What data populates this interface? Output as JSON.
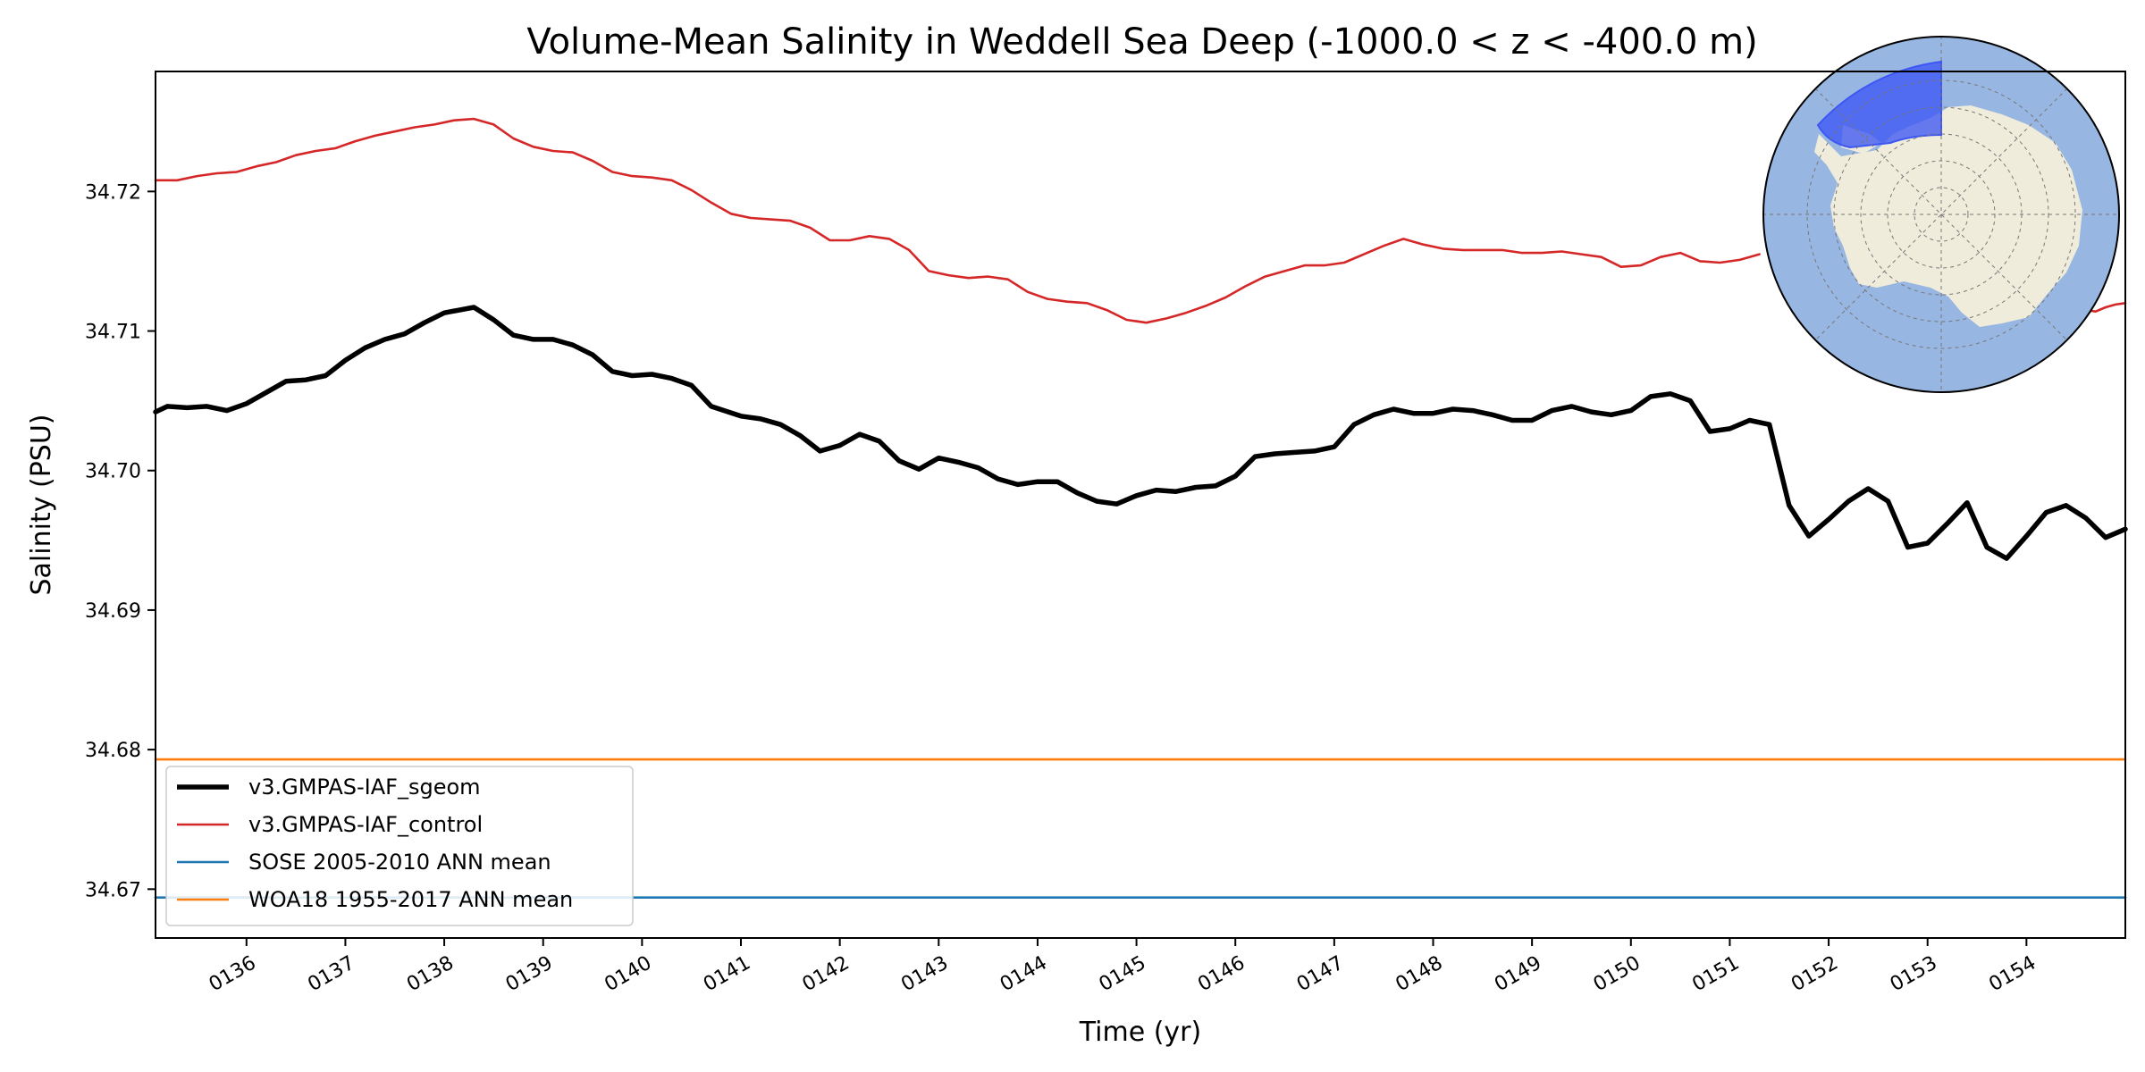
{
  "chart_data": {
    "type": "line",
    "title": "Volume-Mean Salinity in Weddell Sea Deep (-1000.0 < z < -400.0 m)",
    "xlabel": "Time (yr)",
    "ylabel": "Salinity (PSU)",
    "xlim": [
      135.08,
      155.0
    ],
    "ylim": [
      34.6665,
      34.7286
    ],
    "x_ticks": [
      136,
      137,
      138,
      139,
      140,
      141,
      142,
      143,
      144,
      145,
      146,
      147,
      148,
      149,
      150,
      151,
      152,
      153,
      154
    ],
    "x_tick_labels": [
      "0136",
      "0137",
      "0138",
      "0139",
      "0140",
      "0141",
      "0142",
      "0143",
      "0144",
      "0145",
      "0146",
      "0147",
      "0148",
      "0149",
      "0150",
      "0151",
      "0152",
      "0153",
      "0154"
    ],
    "y_ticks": [
      34.67,
      34.68,
      34.69,
      34.7,
      34.71,
      34.72
    ],
    "y_tick_labels": [
      "34.67",
      "34.68",
      "34.69",
      "34.70",
      "34.71",
      "34.72"
    ],
    "grid": false,
    "legend_position": "lower-left",
    "series": [
      {
        "name": "v3.GMPAS-IAF_sgeom",
        "color": "#000000",
        "style": "thick",
        "x": [
          135.08,
          135.2,
          135.4,
          135.6,
          135.8,
          136.0,
          136.2,
          136.4,
          136.6,
          136.8,
          137.0,
          137.2,
          137.4,
          137.6,
          137.8,
          138.0,
          138.3,
          138.5,
          138.7,
          138.9,
          139.1,
          139.3,
          139.5,
          139.7,
          139.9,
          140.1,
          140.3,
          140.5,
          140.7,
          141.0,
          141.2,
          141.4,
          141.6,
          141.8,
          142.0,
          142.2,
          142.4,
          142.6,
          142.8,
          143.0,
          143.2,
          143.4,
          143.6,
          143.8,
          144.0,
          144.2,
          144.4,
          144.6,
          144.8,
          145.0,
          145.2,
          145.4,
          145.6,
          145.8,
          146.0,
          146.2,
          146.4,
          146.6,
          146.8,
          147.0,
          147.2,
          147.4,
          147.6,
          147.8,
          148.0,
          148.2,
          148.4,
          148.6,
          148.8,
          149.0,
          149.2,
          149.4,
          149.6,
          149.8,
          150.0,
          150.2,
          150.4,
          150.6,
          150.8,
          151.0,
          151.2,
          151.4,
          151.6,
          151.8,
          152.0,
          152.2,
          152.4,
          152.6,
          152.8,
          153.0,
          153.2,
          153.4,
          153.6,
          153.8,
          154.0,
          154.2,
          154.4,
          154.6,
          154.8,
          155.0
        ],
        "values": [
          34.7042,
          34.7046,
          34.7045,
          34.7046,
          34.7043,
          34.7048,
          34.7056,
          34.7064,
          34.7065,
          34.7068,
          34.7079,
          34.7088,
          34.7094,
          34.7098,
          34.7106,
          34.7113,
          34.7117,
          34.7108,
          34.7097,
          34.7094,
          34.7094,
          34.709,
          34.7083,
          34.7071,
          34.7068,
          34.7069,
          34.7066,
          34.7061,
          34.7046,
          34.7039,
          34.7037,
          34.7033,
          34.7025,
          34.7014,
          34.7018,
          34.7026,
          34.7021,
          34.7007,
          34.7001,
          34.7009,
          34.7006,
          34.7002,
          34.6994,
          34.699,
          34.6992,
          34.6992,
          34.6984,
          34.6978,
          34.6976,
          34.6982,
          34.6986,
          34.6985,
          34.6988,
          34.6989,
          34.6996,
          34.701,
          34.7012,
          34.7013,
          34.7014,
          34.7017,
          34.7033,
          34.704,
          34.7044,
          34.7041,
          34.7041,
          34.7044,
          34.7043,
          34.704,
          34.7036,
          34.7036,
          34.7043,
          34.7046,
          34.7042,
          34.704,
          34.7043,
          34.7053,
          34.7055,
          34.705,
          34.7028,
          34.703,
          34.7036,
          34.7033,
          34.6975,
          34.6953,
          34.6965,
          34.6978,
          34.6987,
          34.6978,
          34.6945,
          34.6948,
          34.6962,
          34.6977,
          34.6945,
          34.6937,
          34.6953,
          34.697,
          34.6975,
          34.6966,
          34.6952,
          34.6958
        ]
      },
      {
        "name": "v3.GMPAS-IAF_control",
        "color": "#d62728",
        "style": "thin",
        "x": [
          135.08,
          135.3,
          135.5,
          135.7,
          135.9,
          136.1,
          136.3,
          136.5,
          136.7,
          136.9,
          137.1,
          137.3,
          137.5,
          137.7,
          137.9,
          138.1,
          138.3,
          138.5,
          138.7,
          138.9,
          139.1,
          139.3,
          139.5,
          139.7,
          139.9,
          140.1,
          140.3,
          140.5,
          140.7,
          140.9,
          141.1,
          141.3,
          141.5,
          141.7,
          141.9,
          142.1,
          142.3,
          142.5,
          142.7,
          142.9,
          143.1,
          143.3,
          143.5,
          143.7,
          143.9,
          144.1,
          144.3,
          144.5,
          144.7,
          144.9,
          145.1,
          145.3,
          145.5,
          145.7,
          145.9,
          146.1,
          146.3,
          146.5,
          146.7,
          146.9,
          147.1,
          147.3,
          147.5,
          147.7,
          147.9,
          148.1,
          148.3,
          148.5,
          148.7,
          148.9,
          149.1,
          149.3,
          149.5,
          149.7,
          149.9,
          150.1,
          150.3,
          150.5,
          150.7,
          150.9,
          151.1,
          151.3
        ],
        "values": [
          34.7208,
          34.7208,
          34.7211,
          34.7213,
          34.7214,
          34.7218,
          34.7221,
          34.7226,
          34.7229,
          34.7231,
          34.7236,
          34.724,
          34.7243,
          34.7246,
          34.7248,
          34.7251,
          34.7252,
          34.7248,
          34.7238,
          34.7232,
          34.7229,
          34.7228,
          34.7222,
          34.7214,
          34.7211,
          34.721,
          34.7208,
          34.7201,
          34.7192,
          34.7184,
          34.7181,
          34.718,
          34.7179,
          34.7174,
          34.7165,
          34.7165,
          34.7168,
          34.7166,
          34.7158,
          34.7143,
          34.714,
          34.7138,
          34.7139,
          34.7137,
          34.7128,
          34.7123,
          34.7121,
          34.712,
          34.7115,
          34.7108,
          34.7106,
          34.7109,
          34.7113,
          34.7118,
          34.7124,
          34.7132,
          34.7139,
          34.7143,
          34.7147,
          34.7147,
          34.7149,
          34.7155,
          34.7161,
          34.7166,
          34.7162,
          34.7159,
          34.7158,
          34.7158,
          34.7158,
          34.7156,
          34.7156,
          34.7157,
          34.7155,
          34.7153,
          34.7146,
          34.7147,
          34.7153,
          34.7156,
          34.715,
          34.7149,
          34.7151,
          34.7155
        ]
      },
      {
        "name": "v3.GMPAS-IAF_control (tail)",
        "color": "#d62728",
        "style": "thin",
        "x": [
          154.5,
          154.6,
          154.7,
          154.8,
          154.9,
          155.0
        ],
        "values": [
          34.7121,
          34.7115,
          34.7114,
          34.7117,
          34.7119,
          34.712
        ]
      },
      {
        "name": "SOSE 2005-2010 ANN mean",
        "color": "#1f77b4",
        "style": "thin",
        "x": [
          135.08,
          155.0
        ],
        "values": [
          34.6694,
          34.6694
        ]
      },
      {
        "name": "WOA18 1955-2017 ANN mean",
        "color": "#ff7f0e",
        "style": "thin",
        "x": [
          135.08,
          155.0
        ],
        "values": [
          34.6793,
          34.6793
        ]
      }
    ],
    "legend": [
      {
        "label": "v3.GMPAS-IAF_sgeom",
        "color": "#000000",
        "style": "thick"
      },
      {
        "label": "v3.GMPAS-IAF_control",
        "color": "#d62728",
        "style": "thin"
      },
      {
        "label": "SOSE 2005-2010 ANN mean",
        "color": "#1f77b4",
        "style": "thin"
      },
      {
        "label": "WOA18 1955-2017 ANN mean",
        "color": "#ff7f0e",
        "style": "thin"
      }
    ],
    "inset_map": {
      "ocean_color": "#98b6e2",
      "land_color": "#efecdc",
      "region_color": "#3d57f4"
    }
  }
}
